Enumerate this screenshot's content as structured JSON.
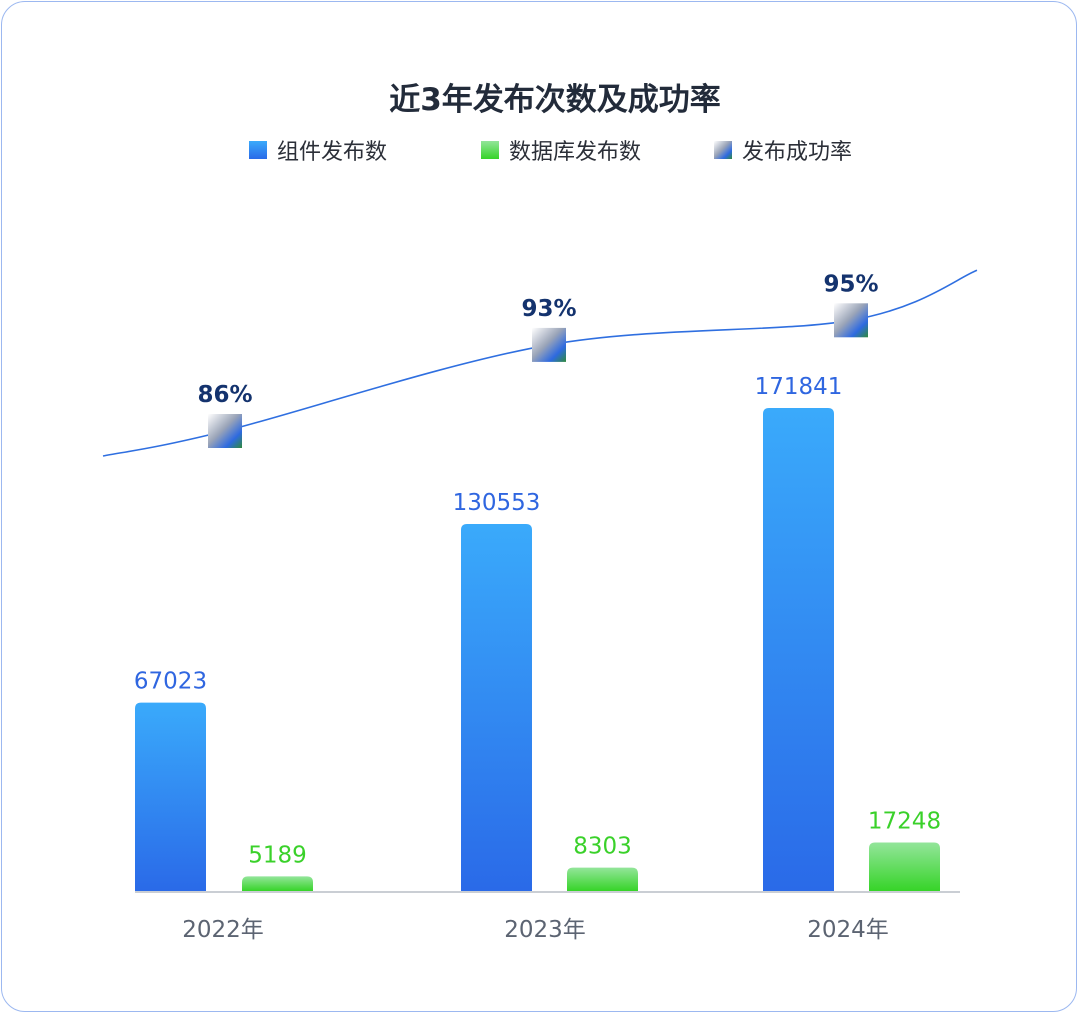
{
  "chart_data": {
    "type": "bar",
    "title": "近3年发布次数及成功率",
    "categories": [
      "2022年",
      "2023年",
      "2024年"
    ],
    "series": [
      {
        "name": "组件发布数",
        "kind": "bar",
        "values": [
          67023,
          130553,
          171841
        ],
        "color": "#2a6ae8"
      },
      {
        "name": "数据库发布数",
        "kind": "bar",
        "values": [
          5189,
          8303,
          17248
        ],
        "color": "#36d428"
      },
      {
        "name": "发布成功率",
        "kind": "line",
        "values": [
          86,
          93,
          95
        ],
        "unit": "%",
        "color": "#2f6fe0"
      }
    ],
    "xlabel": "",
    "ylabel": "",
    "legend_position": "top-center",
    "grid": false
  },
  "colors": {
    "bar_blue_top": "#3aaafb",
    "bar_blue_bottom": "#2a6ae8",
    "bar_green_top": "#93e59a",
    "bar_green_bottom": "#36d428",
    "line": "#2f6fe0",
    "rate_text": "#14336e",
    "axis": "#b9bec6",
    "border": "#9cb8f0"
  }
}
